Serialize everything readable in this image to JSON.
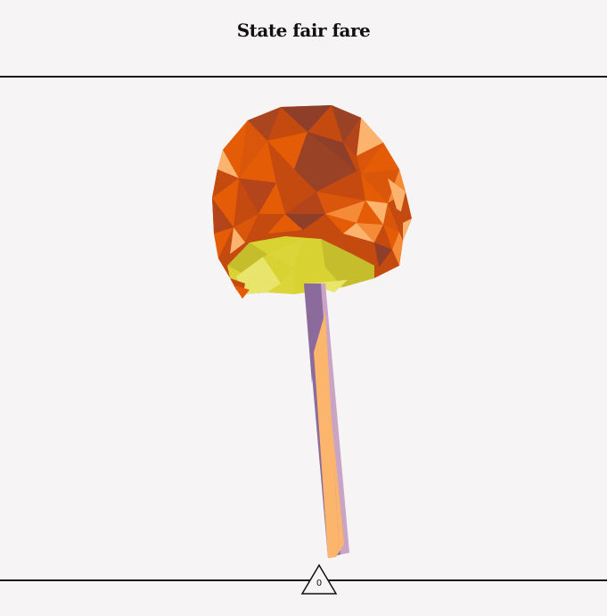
{
  "header": {
    "title": "State fair fare"
  },
  "scene": {
    "object_icon": "candy-apple-icon",
    "colors": {
      "apple_dark": "#8f3e2a",
      "apple_mid": "#c44a10",
      "apple_bright": "#e45c05",
      "apple_light": "#f58a37",
      "apple_highlight": "#fbb36e",
      "caramel": "#d8d232",
      "caramel_light": "#e8e46c",
      "caramel_dark": "#c6bd2c",
      "stick_purple": "#8b6b9b",
      "stick_lilac": "#c9a4c4",
      "stick_peach": "#fcb56c"
    }
  },
  "counter": {
    "value": "0",
    "icon": "triangle-icon"
  }
}
